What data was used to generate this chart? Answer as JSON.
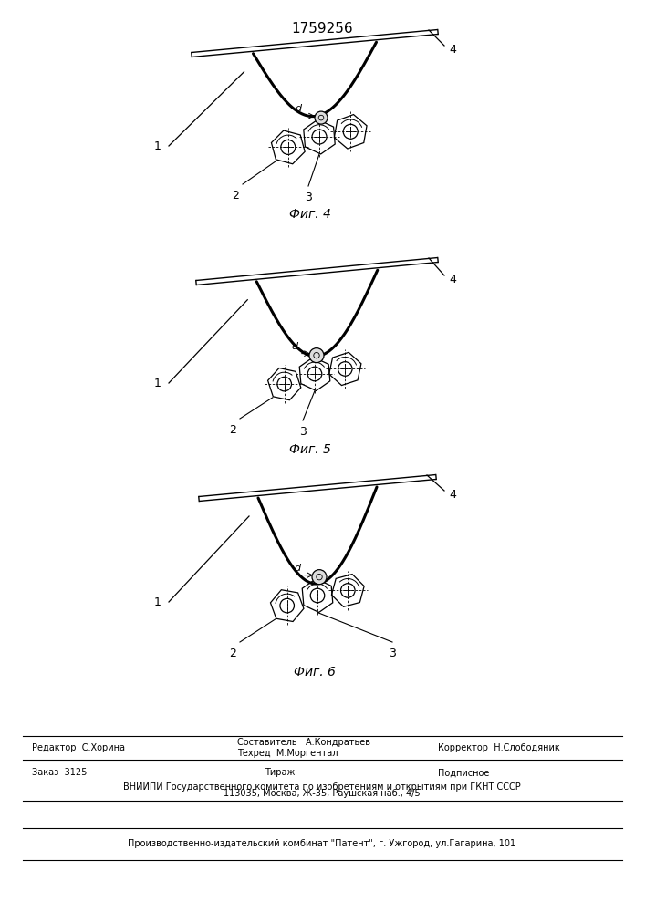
{
  "title": "1759256",
  "bg_color": "#ffffff",
  "fig_width": 7.07,
  "fig_height": 10.0,
  "fig_labels": [
    "Фиг. 4",
    "Фиг. 5",
    "Фиг. 6"
  ],
  "footer": {
    "editor": "Редактор  С.Хорина",
    "composer": "Составитель   А.Кондратьев",
    "techred": "Техред  М.Моргентал",
    "corrector": "Корректор  Н.Слободяник",
    "order": "Заказ  3125",
    "tirazh": "Тираж",
    "podpisnoe": "Подписное",
    "vniipи": "ВНИИПИ Государственного комитета по изобретениям и открытиям при ГКНТ СССР",
    "address": "113035, Москва, Ж-35, Раушская наб., 4/5",
    "publisher": "Производственно-издательский комбинат \"Патент\", г. Ужгород, ул.Гагарина, 101"
  }
}
